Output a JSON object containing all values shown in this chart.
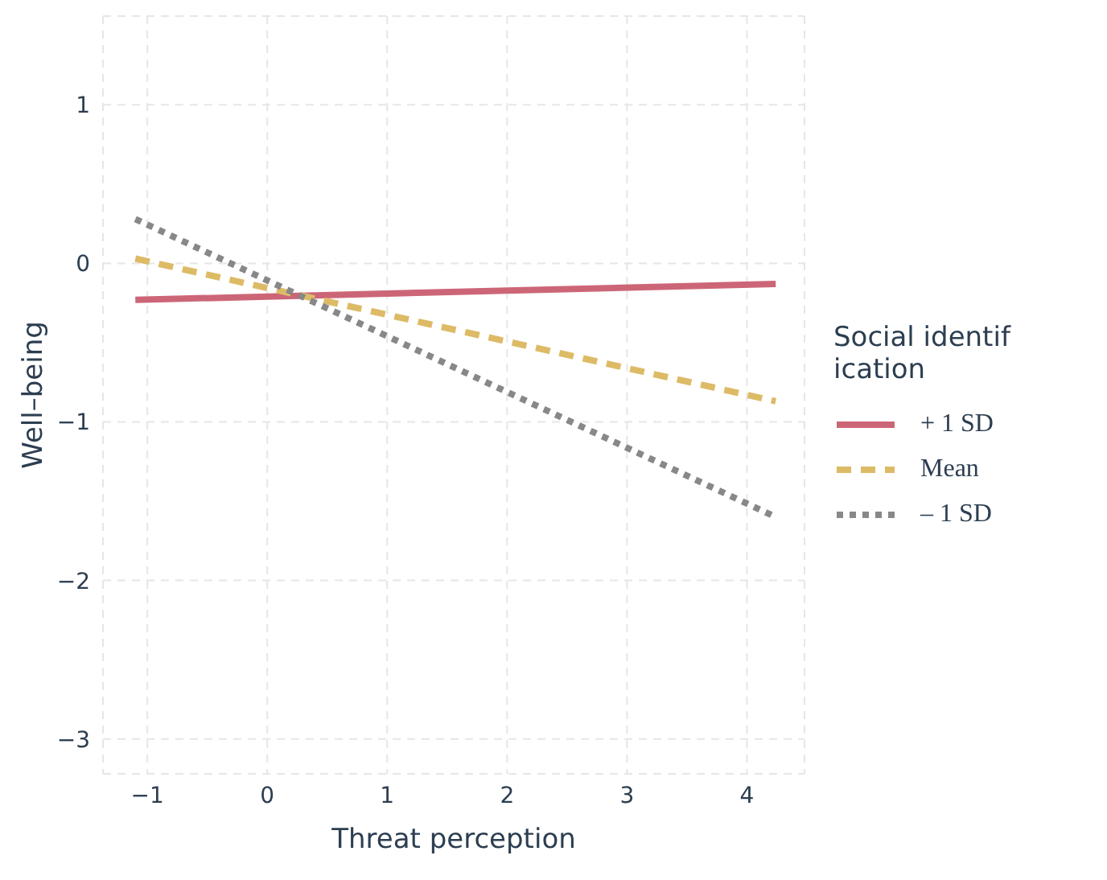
{
  "chart_data": {
    "type": "line",
    "xlabel": "Threat perception",
    "ylabel": "Well–being",
    "legend_title": "Social identif ication",
    "x": [
      -1.1,
      4.24
    ],
    "series": [
      {
        "name": "+ 1 SD",
        "color": "#cc6677",
        "line_style": "solid",
        "values": [
          -0.23,
          -0.13
        ]
      },
      {
        "name": "Mean",
        "color": "#ddbb66",
        "line_style": "dashed",
        "values": [
          0.03,
          -0.87
        ]
      },
      {
        "name": "– 1 SD",
        "color": "#888888",
        "line_style": "dotted",
        "values": [
          0.28,
          -1.6
        ]
      }
    ],
    "xlim": [
      -1.37,
      4.48
    ],
    "xticks": [
      -1,
      0,
      1,
      2,
      3,
      4
    ],
    "ylim": [
      -3.22,
      1.56
    ],
    "yticks": [
      -3,
      -2,
      -1,
      0,
      1
    ],
    "grid": true,
    "legend": "right",
    "marker": "none"
  }
}
